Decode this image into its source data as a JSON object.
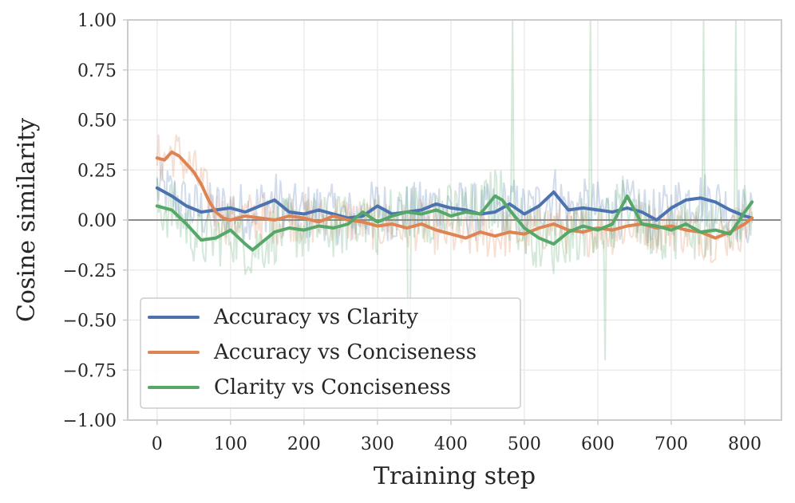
{
  "chart_data": {
    "type": "line",
    "title": "",
    "xlabel": "Training step",
    "ylabel": "Cosine similarity",
    "xlim": [
      -40,
      850
    ],
    "ylim": [
      -1.0,
      1.0
    ],
    "xticks": [
      0,
      100,
      200,
      300,
      400,
      500,
      600,
      700,
      800
    ],
    "yticks": [
      1.0,
      0.75,
      0.5,
      0.25,
      0.0,
      -0.25,
      -0.5,
      -0.75,
      -1.0
    ],
    "ytick_labels": [
      "1.00",
      "0.75",
      "0.50",
      "0.25",
      "0.00",
      "−0.25",
      "−0.50",
      "−0.75",
      "−1.00"
    ],
    "grid": true,
    "reference_line_y": 0.0,
    "legend_position": "lower-left",
    "series": [
      {
        "name": "Accuracy vs Clarity",
        "color": "#4c72b0",
        "x": [
          0,
          20,
          40,
          60,
          80,
          100,
          120,
          140,
          160,
          180,
          200,
          220,
          240,
          260,
          280,
          300,
          320,
          340,
          360,
          380,
          400,
          420,
          440,
          460,
          480,
          500,
          520,
          540,
          560,
          580,
          600,
          620,
          640,
          660,
          680,
          700,
          720,
          740,
          760,
          780,
          800,
          810
        ],
        "values": [
          0.16,
          0.12,
          0.07,
          0.04,
          0.05,
          0.06,
          0.04,
          0.07,
          0.1,
          0.04,
          0.03,
          0.05,
          0.03,
          0.01,
          0.02,
          0.07,
          0.03,
          0.04,
          0.05,
          0.08,
          0.06,
          0.05,
          0.03,
          0.04,
          0.08,
          0.03,
          0.07,
          0.14,
          0.05,
          0.06,
          0.05,
          0.04,
          0.06,
          0.04,
          0.0,
          0.06,
          0.1,
          0.11,
          0.09,
          0.05,
          0.02,
          0.01
        ]
      },
      {
        "name": "Accuracy vs Conciseness",
        "color": "#dd8452",
        "x": [
          0,
          10,
          20,
          30,
          40,
          50,
          60,
          70,
          80,
          90,
          100,
          120,
          140,
          160,
          180,
          200,
          220,
          240,
          260,
          280,
          300,
          320,
          340,
          360,
          380,
          400,
          420,
          440,
          460,
          480,
          500,
          520,
          540,
          560,
          580,
          600,
          620,
          640,
          660,
          680,
          700,
          720,
          740,
          760,
          780,
          800,
          810
        ],
        "values": [
          0.31,
          0.3,
          0.34,
          0.32,
          0.28,
          0.24,
          0.18,
          0.1,
          0.04,
          0.01,
          0.0,
          0.02,
          0.01,
          0.0,
          0.02,
          0.01,
          -0.01,
          0.02,
          0.0,
          -0.01,
          -0.03,
          -0.02,
          -0.04,
          -0.02,
          -0.05,
          -0.07,
          -0.09,
          -0.06,
          -0.08,
          -0.06,
          -0.07,
          -0.04,
          -0.02,
          -0.05,
          -0.06,
          -0.04,
          -0.05,
          -0.03,
          -0.02,
          -0.04,
          -0.03,
          -0.05,
          -0.06,
          -0.09,
          -0.06,
          -0.02,
          0.01
        ]
      },
      {
        "name": "Clarity vs Conciseness",
        "color": "#55a868",
        "x": [
          0,
          20,
          40,
          60,
          80,
          100,
          120,
          130,
          140,
          160,
          180,
          200,
          220,
          240,
          260,
          280,
          300,
          320,
          340,
          360,
          380,
          400,
          420,
          440,
          460,
          470,
          480,
          500,
          520,
          540,
          560,
          580,
          600,
          620,
          640,
          660,
          680,
          700,
          720,
          740,
          760,
          780,
          800,
          810
        ],
        "values": [
          0.07,
          0.05,
          -0.02,
          -0.1,
          -0.09,
          -0.05,
          -0.12,
          -0.15,
          -0.12,
          -0.06,
          -0.04,
          -0.05,
          -0.03,
          -0.04,
          -0.02,
          0.04,
          -0.01,
          0.02,
          0.04,
          0.03,
          0.05,
          0.02,
          0.04,
          0.03,
          0.12,
          0.1,
          0.05,
          -0.04,
          -0.09,
          -0.12,
          -0.06,
          -0.03,
          -0.05,
          -0.02,
          0.12,
          -0.02,
          -0.03,
          -0.05,
          -0.02,
          -0.06,
          -0.05,
          -0.07,
          0.04,
          0.09
        ]
      }
    ]
  }
}
